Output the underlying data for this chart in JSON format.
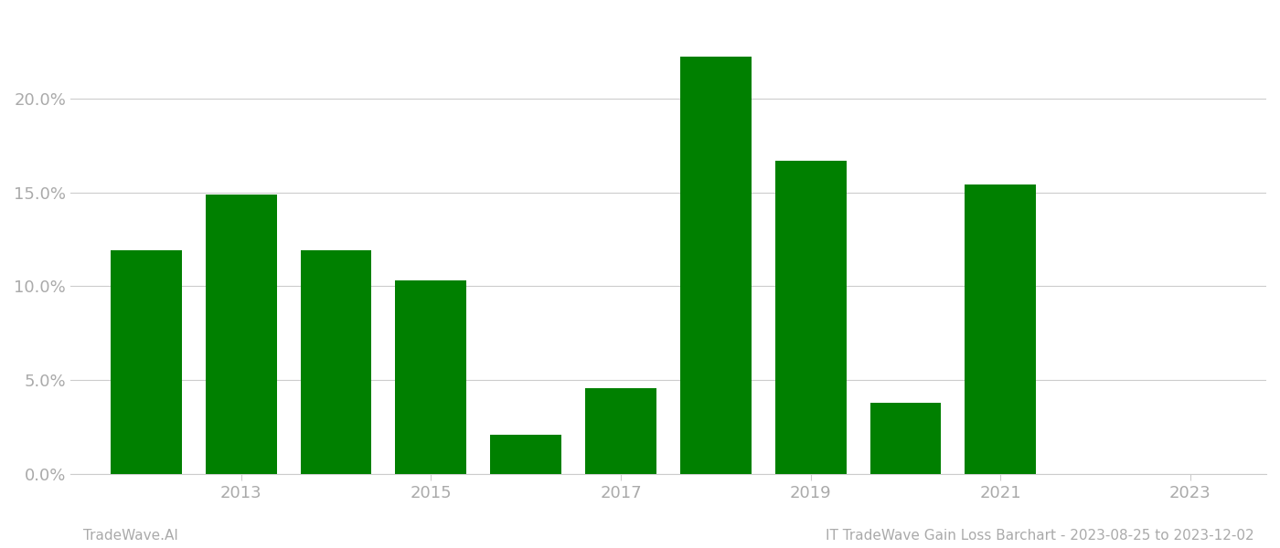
{
  "years": [
    2012,
    2013,
    2014,
    2015,
    2016,
    2017,
    2018,
    2019,
    2020,
    2021
  ],
  "values": [
    0.119,
    0.149,
    0.119,
    0.103,
    0.021,
    0.046,
    0.222,
    0.167,
    0.038,
    0.154
  ],
  "bar_color": "#008000",
  "background_color": "#ffffff",
  "grid_color": "#cccccc",
  "ytick_values": [
    0.0,
    0.05,
    0.1,
    0.15,
    0.2
  ],
  "xtick_positions": [
    2013,
    2015,
    2017,
    2019,
    2021,
    2023
  ],
  "xtick_labels": [
    "2013",
    "2015",
    "2017",
    "2019",
    "2021",
    "2023"
  ],
  "ylim": [
    0.0,
    0.245
  ],
  "xlim_left": 2011.2,
  "xlim_right": 2023.8,
  "footer_left": "TradeWave.AI",
  "footer_right": "IT TradeWave Gain Loss Barchart - 2023-08-25 to 2023-12-02",
  "footer_color": "#aaaaaa",
  "bar_width": 0.75,
  "tick_label_color": "#aaaaaa",
  "spine_color": "#cccccc",
  "tick_labelsize": 13,
  "footer_fontsize": 11
}
